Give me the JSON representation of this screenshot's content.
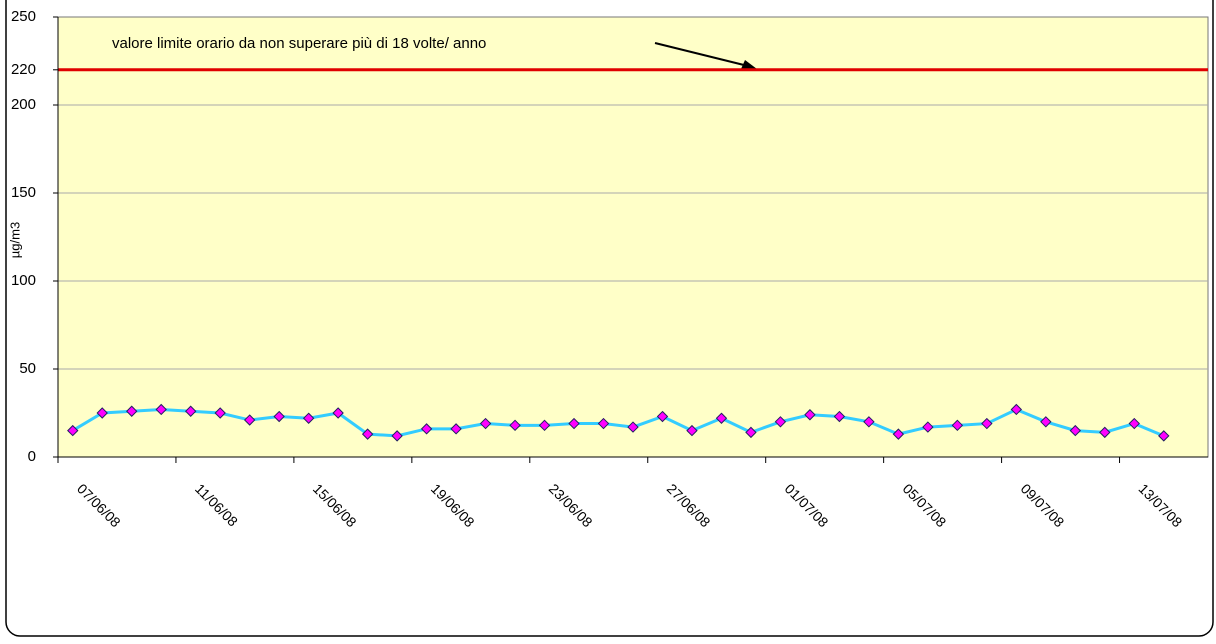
{
  "chart_data": {
    "type": "line",
    "y_label": "µg/m3",
    "annotation": "valore limite orario da non superare più di 18 volte/ anno",
    "categories": [
      "07/06/08",
      null,
      null,
      null,
      "11/06/08",
      null,
      null,
      null,
      "15/06/08",
      null,
      null,
      null,
      "19/06/08",
      null,
      null,
      null,
      "23/06/08",
      null,
      null,
      null,
      "27/06/08",
      null,
      null,
      null,
      "01/07/08",
      null,
      null,
      null,
      "05/07/08",
      null,
      null,
      null,
      "09/07/08",
      null,
      null,
      null,
      "13/07/08",
      null,
      null
    ],
    "series": [
      {
        "color": "#33ccff",
        "marker_color": "#ff00ff",
        "values": [
          15,
          25,
          26,
          27,
          26,
          25,
          21,
          23,
          22,
          25,
          13,
          12,
          16,
          16,
          19,
          18,
          18,
          19,
          19,
          17,
          23,
          15,
          22,
          14,
          20,
          24,
          23,
          20,
          13,
          17,
          18,
          19,
          27,
          20,
          15,
          14,
          19,
          12,
          null
        ]
      }
    ],
    "threshold": {
      "value": 220,
      "color": "#e00000"
    },
    "ylim": [
      0,
      250
    ],
    "yticks": [
      0,
      50,
      100,
      150,
      200,
      220,
      250
    ],
    "grid": true
  }
}
